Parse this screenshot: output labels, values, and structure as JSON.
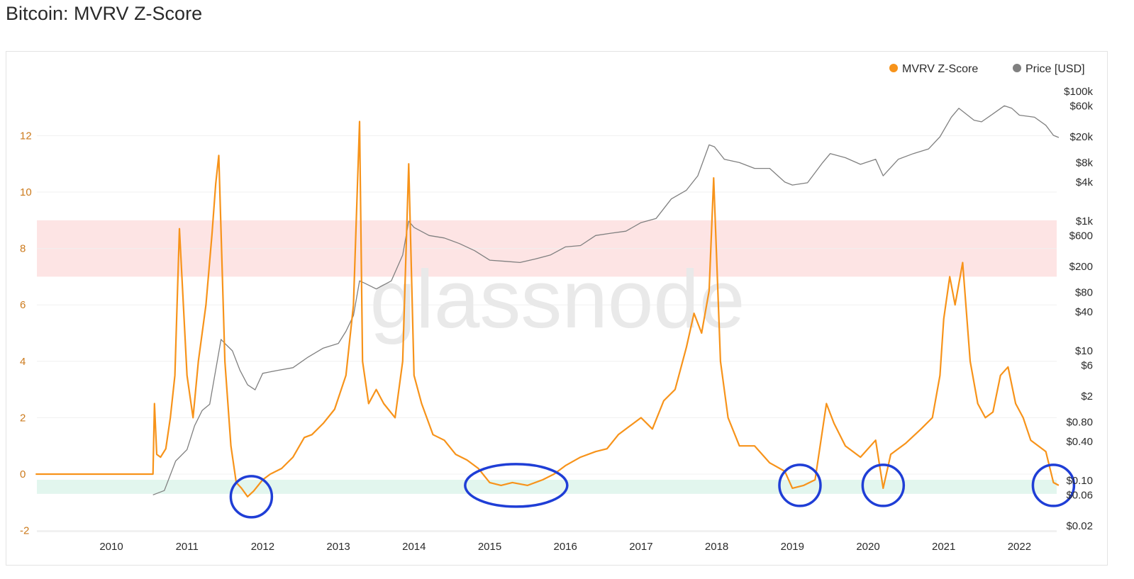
{
  "title": "Bitcoin: MVRV Z-Score",
  "watermark": "glassnode",
  "colors": {
    "mvrv": "#f7931a",
    "price": "#808080",
    "red_band": "#fde4e4",
    "green_band": "#e2f6ee",
    "circle": "#1f3ed6"
  },
  "legend": [
    {
      "label": "MVRV Z-Score",
      "color": "#f7931a"
    },
    {
      "label": "Price [USD]",
      "color": "#808080"
    }
  ],
  "chart_data": {
    "type": "line",
    "title": "Bitcoin: MVRV Z-Score",
    "x_ticks": [
      "2010",
      "2011",
      "2012",
      "2013",
      "2014",
      "2015",
      "2016",
      "2017",
      "2018",
      "2019",
      "2020",
      "2021",
      "2022"
    ],
    "y_left_ticks": [
      "12",
      "10",
      "8",
      "6",
      "4",
      "2",
      "0",
      "-2"
    ],
    "y_left_values": [
      12,
      10,
      8,
      6,
      4,
      2,
      0,
      -2
    ],
    "y_right_ticks": [
      "$100k",
      "$60k",
      "$20k",
      "$8k",
      "$4k",
      "$1k",
      "$600",
      "$200",
      "$80",
      "$40",
      "$10",
      "$6",
      "$2",
      "$0.80",
      "$0.40",
      "$0.10",
      "$0.06",
      "$0.02"
    ],
    "y_right_values": [
      100000,
      60000,
      20000,
      8000,
      4000,
      1000,
      600,
      200,
      80,
      40,
      10,
      6,
      2,
      0.8,
      0.4,
      0.1,
      0.06,
      0.02
    ],
    "y_right_scale": "log",
    "grid": true,
    "legend_position": "top-right",
    "bands": [
      {
        "name": "overvalued zone",
        "y_from": 7.0,
        "y_to": 9.0
      },
      {
        "name": "undervalued zone",
        "y_from": -0.7,
        "y_to": -0.2
      }
    ],
    "highlight_circles": [
      {
        "x": 2011.85,
        "y": -0.8
      },
      {
        "x": 2015.35,
        "y": -0.4
      },
      {
        "x": 2019.1,
        "y": -0.4
      },
      {
        "x": 2020.2,
        "y": -0.4
      },
      {
        "x": 2022.45,
        "y": -0.4
      }
    ],
    "series": [
      {
        "name": "MVRV Z-Score",
        "x": [
          2009.0,
          2010.55,
          2010.57,
          2010.6,
          2010.65,
          2010.72,
          2010.78,
          2010.84,
          2010.9,
          2011.0,
          2011.08,
          2011.15,
          2011.25,
          2011.33,
          2011.38,
          2011.42,
          2011.5,
          2011.58,
          2011.65,
          2011.72,
          2011.8,
          2011.88,
          2012.0,
          2012.1,
          2012.25,
          2012.4,
          2012.55,
          2012.65,
          2012.8,
          2012.95,
          2013.1,
          2013.2,
          2013.28,
          2013.32,
          2013.4,
          2013.5,
          2013.6,
          2013.75,
          2013.85,
          2013.93,
          2014.0,
          2014.1,
          2014.25,
          2014.4,
          2014.55,
          2014.7,
          2014.85,
          2015.0,
          2015.15,
          2015.3,
          2015.5,
          2015.7,
          2015.85,
          2016.0,
          2016.2,
          2016.4,
          2016.55,
          2016.7,
          2016.85,
          2017.0,
          2017.15,
          2017.3,
          2017.45,
          2017.6,
          2017.7,
          2017.8,
          2017.9,
          2017.96,
          2018.05,
          2018.15,
          2018.3,
          2018.5,
          2018.7,
          2018.9,
          2019.0,
          2019.15,
          2019.3,
          2019.45,
          2019.55,
          2019.7,
          2019.9,
          2020.1,
          2020.2,
          2020.3,
          2020.5,
          2020.7,
          2020.85,
          2020.95,
          2021.0,
          2021.08,
          2021.15,
          2021.25,
          2021.35,
          2021.45,
          2021.55,
          2021.65,
          2021.75,
          2021.85,
          2021.95,
          2022.05,
          2022.15,
          2022.25,
          2022.35,
          2022.45,
          2022.52
        ],
        "y": [
          0.0,
          0.0,
          2.5,
          0.7,
          0.6,
          0.9,
          2.0,
          3.5,
          8.7,
          3.5,
          2.0,
          4.0,
          6.0,
          8.5,
          10.3,
          11.3,
          4.0,
          1.0,
          -0.3,
          -0.5,
          -0.8,
          -0.6,
          -0.2,
          0.0,
          0.2,
          0.6,
          1.3,
          1.4,
          1.8,
          2.3,
          3.5,
          6.0,
          12.5,
          4.0,
          2.5,
          3.0,
          2.5,
          2.0,
          4.0,
          11.0,
          3.5,
          2.5,
          1.4,
          1.2,
          0.7,
          0.5,
          0.2,
          -0.3,
          -0.4,
          -0.3,
          -0.4,
          -0.2,
          0.0,
          0.3,
          0.6,
          0.8,
          0.9,
          1.4,
          1.7,
          2.0,
          1.6,
          2.6,
          3.0,
          4.5,
          5.7,
          5.0,
          6.5,
          10.5,
          4.0,
          2.0,
          1.0,
          1.0,
          0.4,
          0.1,
          -0.5,
          -0.4,
          -0.2,
          2.5,
          1.8,
          1.0,
          0.6,
          1.2,
          -0.5,
          0.7,
          1.1,
          1.6,
          2.0,
          3.5,
          5.5,
          7.0,
          6.0,
          7.5,
          4.0,
          2.5,
          2.0,
          2.2,
          3.5,
          3.8,
          2.5,
          2.0,
          1.2,
          1.0,
          0.8,
          -0.3,
          -0.4
        ]
      },
      {
        "name": "Price [USD]",
        "x": [
          2010.55,
          2010.7,
          2010.85,
          2011.0,
          2011.1,
          2011.2,
          2011.3,
          2011.45,
          2011.5,
          2011.6,
          2011.7,
          2011.8,
          2011.9,
          2012.0,
          2012.2,
          2012.4,
          2012.6,
          2012.8,
          2013.0,
          2013.1,
          2013.2,
          2013.28,
          2013.35,
          2013.5,
          2013.7,
          2013.85,
          2013.93,
          2014.0,
          2014.2,
          2014.4,
          2014.6,
          2014.8,
          2015.0,
          2015.2,
          2015.4,
          2015.6,
          2015.8,
          2016.0,
          2016.2,
          2016.4,
          2016.6,
          2016.8,
          2017.0,
          2017.2,
          2017.4,
          2017.6,
          2017.75,
          2017.9,
          2017.97,
          2018.1,
          2018.3,
          2018.5,
          2018.7,
          2018.9,
          2019.0,
          2019.2,
          2019.4,
          2019.5,
          2019.7,
          2019.9,
          2020.1,
          2020.2,
          2020.4,
          2020.6,
          2020.8,
          2020.95,
          2021.1,
          2021.2,
          2021.4,
          2021.5,
          2021.65,
          2021.8,
          2021.9,
          2022.0,
          2022.2,
          2022.35,
          2022.45,
          2022.52
        ],
        "y": [
          0.06,
          0.07,
          0.2,
          0.3,
          0.7,
          1.2,
          1.5,
          15,
          13,
          10,
          5,
          3,
          2.5,
          4.5,
          5,
          5.5,
          8,
          11,
          13,
          20,
          35,
          120,
          110,
          90,
          120,
          300,
          1000,
          800,
          600,
          550,
          450,
          350,
          250,
          240,
          230,
          260,
          300,
          400,
          420,
          600,
          650,
          700,
          950,
          1100,
          2200,
          3000,
          5000,
          15000,
          14000,
          9000,
          8000,
          6500,
          6500,
          4000,
          3600,
          3900,
          8000,
          11000,
          9500,
          7500,
          9000,
          5000,
          9000,
          11000,
          13000,
          20000,
          40000,
          55000,
          36000,
          34000,
          45000,
          60000,
          55000,
          43000,
          40000,
          30000,
          21000,
          19500
        ]
      }
    ]
  }
}
